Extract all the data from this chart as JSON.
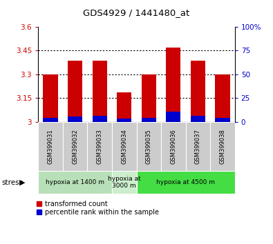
{
  "title": "GDS4929 / 1441480_at",
  "samples": [
    "GSM399031",
    "GSM399032",
    "GSM399033",
    "GSM399034",
    "GSM399035",
    "GSM399036",
    "GSM399037",
    "GSM399038"
  ],
  "red_values": [
    3.3,
    3.385,
    3.385,
    3.185,
    3.3,
    3.47,
    3.385,
    3.3
  ],
  "blue_values": [
    3.025,
    3.035,
    3.037,
    3.022,
    3.028,
    3.065,
    3.04,
    3.025
  ],
  "y_min": 3.0,
  "y_max": 3.6,
  "y_ticks": [
    3.0,
    3.15,
    3.3,
    3.45,
    3.6
  ],
  "y_tick_labels": [
    "3",
    "3.15",
    "3.3",
    "3.45",
    "3.6"
  ],
  "right_y_ticks_pct": [
    0,
    25,
    50,
    75,
    100
  ],
  "right_y_labels": [
    "0",
    "25",
    "50",
    "75",
    "100%"
  ],
  "bar_color_red": "#cc0000",
  "bar_color_blue": "#0000cc",
  "bar_width": 0.6,
  "label_color_left": "#cc0000",
  "label_color_right": "#0000cc",
  "legend_red_label": "transformed count",
  "legend_blue_label": "percentile rank within the sample",
  "stress_label": "stress",
  "group1_color": "#b8e0b8",
  "group2_color": "#cceecc",
  "group3_color": "#44dd44",
  "sample_box_color": "#cccccc",
  "fig_bg": "#ffffff"
}
